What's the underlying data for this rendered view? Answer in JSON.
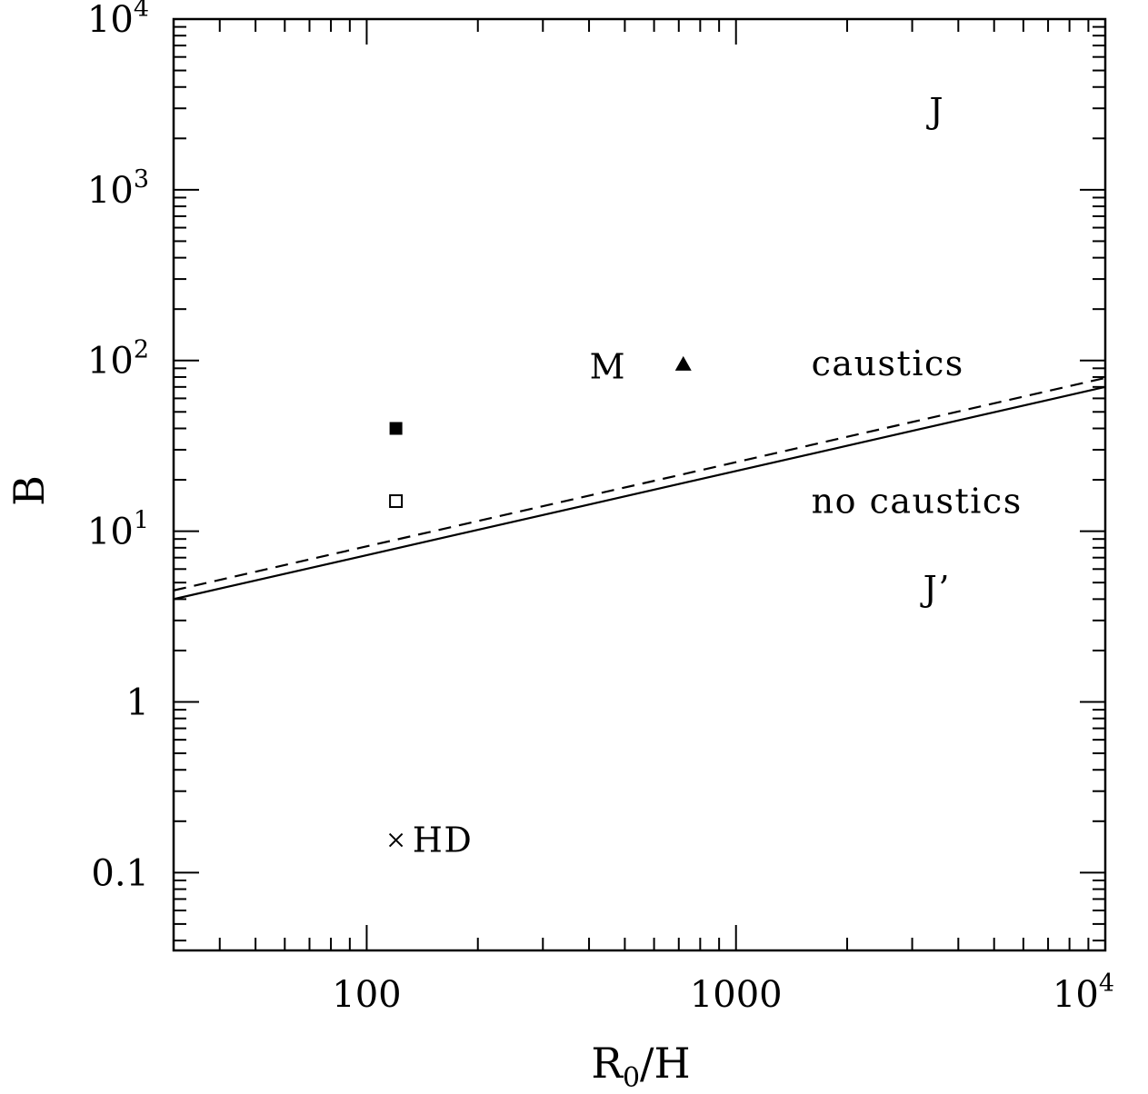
{
  "chart_data": {
    "type": "scatter",
    "xscale": "log",
    "yscale": "log",
    "xlim": [
      30,
      10000
    ],
    "ylim": [
      0.035,
      10000
    ],
    "grid": false,
    "xlabel": {
      "main": "R",
      "sub": "0",
      "rest": "/H"
    },
    "ylabel": "B",
    "x_ticks": [
      {
        "value": 100,
        "label": "100",
        "sup": ""
      },
      {
        "value": 1000,
        "label": "1000",
        "sup": ""
      },
      {
        "value": 10000,
        "label": "10",
        "sup": "4"
      }
    ],
    "y_ticks": [
      {
        "value": 0.1,
        "label": "0.1",
        "sup": ""
      },
      {
        "value": 1,
        "label": "1",
        "sup": ""
      },
      {
        "value": 10,
        "label": "10",
        "sup": "1"
      },
      {
        "value": 100,
        "label": "10",
        "sup": "2"
      },
      {
        "value": 1000,
        "label": "10",
        "sup": "3"
      },
      {
        "value": 10000,
        "label": "10",
        "sup": "4"
      }
    ],
    "lines": [
      {
        "style": "solid",
        "points": [
          [
            30,
            4.0
          ],
          [
            10000,
            70
          ]
        ]
      },
      {
        "style": "dashed",
        "points": [
          [
            30,
            4.5
          ],
          [
            10000,
            79
          ]
        ]
      }
    ],
    "points": [
      {
        "marker": "filled-square",
        "x": 120,
        "y": 40
      },
      {
        "marker": "open-square",
        "x": 120,
        "y": 15
      },
      {
        "marker": "filled-triangle",
        "x": 720,
        "y": 95
      },
      {
        "marker": "cross",
        "x": 120,
        "y": 0.155
      }
    ],
    "annotations": [
      {
        "text": "M",
        "x": 450,
        "y": 92,
        "anchor": "middle"
      },
      {
        "text": "J",
        "x": 3500,
        "y": 2900,
        "anchor": "middle"
      },
      {
        "text": "J’",
        "x": 3500,
        "y": 4.6,
        "anchor": "middle"
      },
      {
        "text": "caustics",
        "x": 1600,
        "y": 96,
        "anchor": "start"
      },
      {
        "text": "no caustics",
        "x": 1600,
        "y": 15,
        "anchor": "start"
      },
      {
        "text": "HD",
        "x": 133,
        "y": 0.155,
        "anchor": "start"
      }
    ]
  }
}
